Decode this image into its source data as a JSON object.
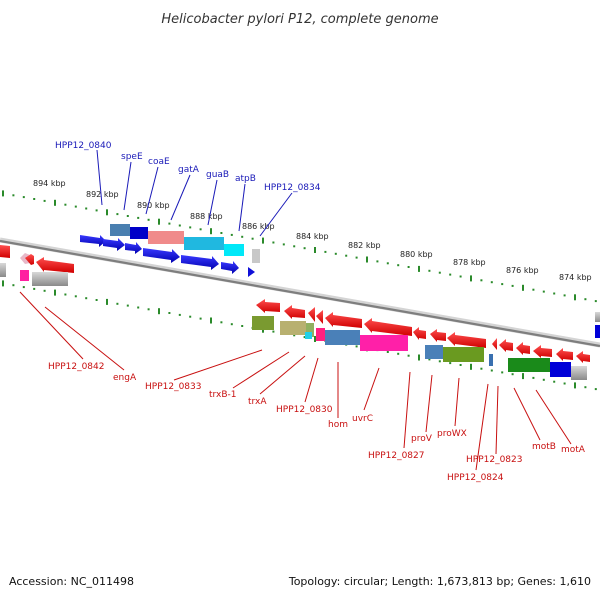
{
  "title": "Helicobacter pylori P12, complete genome",
  "footer": {
    "accession": "Accession: NC_011498",
    "summary": "Topology: circular; Length: 1,673,813 bp; Genes: 1,610"
  },
  "scale_labels": [
    "894 kbp",
    "892 kbp",
    "890 kbp",
    "888 kbp",
    "886 kbp",
    "884 kbp",
    "882 kbp",
    "880 kbp",
    "878 kbp",
    "876 kbp",
    "874 kbp"
  ],
  "top_labels": [
    "HPP12_0840",
    "speE",
    "coaE",
    "gatA",
    "guaB",
    "atpB",
    "HPP12_0834"
  ],
  "bottom_labels": [
    "HPP12_0842",
    "engA",
    "HPP12_0833",
    "trxB-1",
    "trxA",
    "HPP12_0830",
    "hom",
    "uvrC",
    "HPP12_0827",
    "proV",
    "proWX",
    "HPP12_0823",
    "HPP12_0824",
    "motB",
    "motA"
  ],
  "colors": {
    "forward": "#1010d8",
    "reverse": "#e81010",
    "tick": "#2a8a2a",
    "backbone": "#808080",
    "label_top": "#1a1ab8",
    "label_bottom": "#c81010"
  }
}
